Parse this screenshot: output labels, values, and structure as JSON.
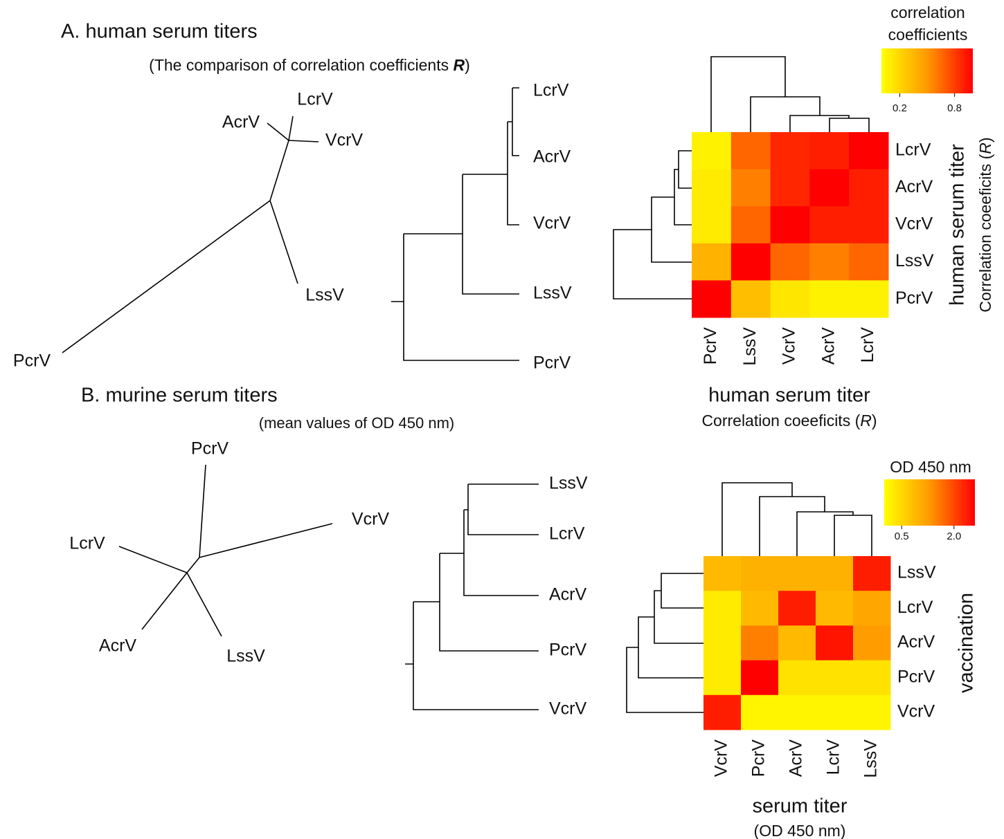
{
  "panel_a": {
    "title": "A. human serum titers",
    "subtitle": [
      "(The comparison of correlation coefficients ",
      "R",
      ")"
    ],
    "unrooted_tree": {
      "labels": [
        "LcrV",
        "AcrV",
        "VcrV",
        "LssV",
        "PcrV"
      ]
    },
    "dendrogram": {
      "labels": [
        "LcrV",
        "AcrV",
        "VcrV",
        "LssV",
        "PcrV"
      ]
    },
    "heatmap": {
      "type": "heatmap",
      "rows": [
        "LcrV",
        "AcrV",
        "VcrV",
        "LssV",
        "PcrV"
      ],
      "columns": [
        "PcrV",
        "LssV",
        "VcrV",
        "AcrV",
        "LcrV"
      ],
      "values": [
        [
          0.05,
          0.6,
          0.85,
          0.88,
          1.0
        ],
        [
          0.08,
          0.5,
          0.85,
          1.0,
          0.88
        ],
        [
          0.08,
          0.6,
          1.0,
          0.88,
          0.88
        ],
        [
          0.3,
          1.0,
          0.6,
          0.5,
          0.6
        ],
        [
          1.0,
          0.25,
          0.1,
          0.05,
          0.05
        ]
      ],
      "colorbar": {
        "title": [
          "correlation",
          "coefficients"
        ],
        "lim": [
          0,
          1
        ],
        "ticks": [
          0.2,
          0.8
        ]
      },
      "x_label": "human serum titer",
      "x_sublabel": [
        "Correlation coeeficits (",
        "R",
        ")"
      ],
      "y_label": "human serum titer",
      "y_sublabel": [
        "Correlation coeeficits (",
        "R",
        ")"
      ]
    }
  },
  "panel_b": {
    "title": "B. murine serum titers",
    "subtitle": [
      "(mean values of OD 450 nm)"
    ],
    "unrooted_tree": {
      "labels": [
        "PcrV",
        "VcrV",
        "LcrV",
        "AcrV",
        "LssV"
      ]
    },
    "dendrogram": {
      "labels": [
        "LssV",
        "LcrV",
        "AcrV",
        "PcrV",
        "VcrV"
      ]
    },
    "heatmap": {
      "type": "heatmap",
      "rows": [
        "LssV",
        "LcrV",
        "AcrV",
        "PcrV",
        "VcrV"
      ],
      "columns": [
        "VcrV",
        "PcrV",
        "AcrV",
        "LcrV",
        "LssV"
      ],
      "values": [
        [
          0.7,
          0.8,
          0.8,
          0.8,
          2.3
        ],
        [
          0.2,
          0.7,
          2.3,
          0.7,
          0.9
        ],
        [
          0.2,
          1.3,
          0.7,
          2.4,
          1.0
        ],
        [
          0.2,
          2.6,
          0.3,
          0.3,
          0.3
        ],
        [
          2.3,
          0.1,
          0.1,
          0.1,
          0.1
        ]
      ],
      "colorbar": {
        "title": [
          "OD 450 nm"
        ],
        "lim": [
          0,
          2.6
        ],
        "ticks": [
          0.5,
          {
            "value": 2,
            "label": "2.0"
          }
        ]
      },
      "x_label": "serum titer",
      "x_sublabel": [
        "(OD 450 nm)"
      ],
      "y_label": "vaccination",
      "y_sublabel": []
    }
  }
}
